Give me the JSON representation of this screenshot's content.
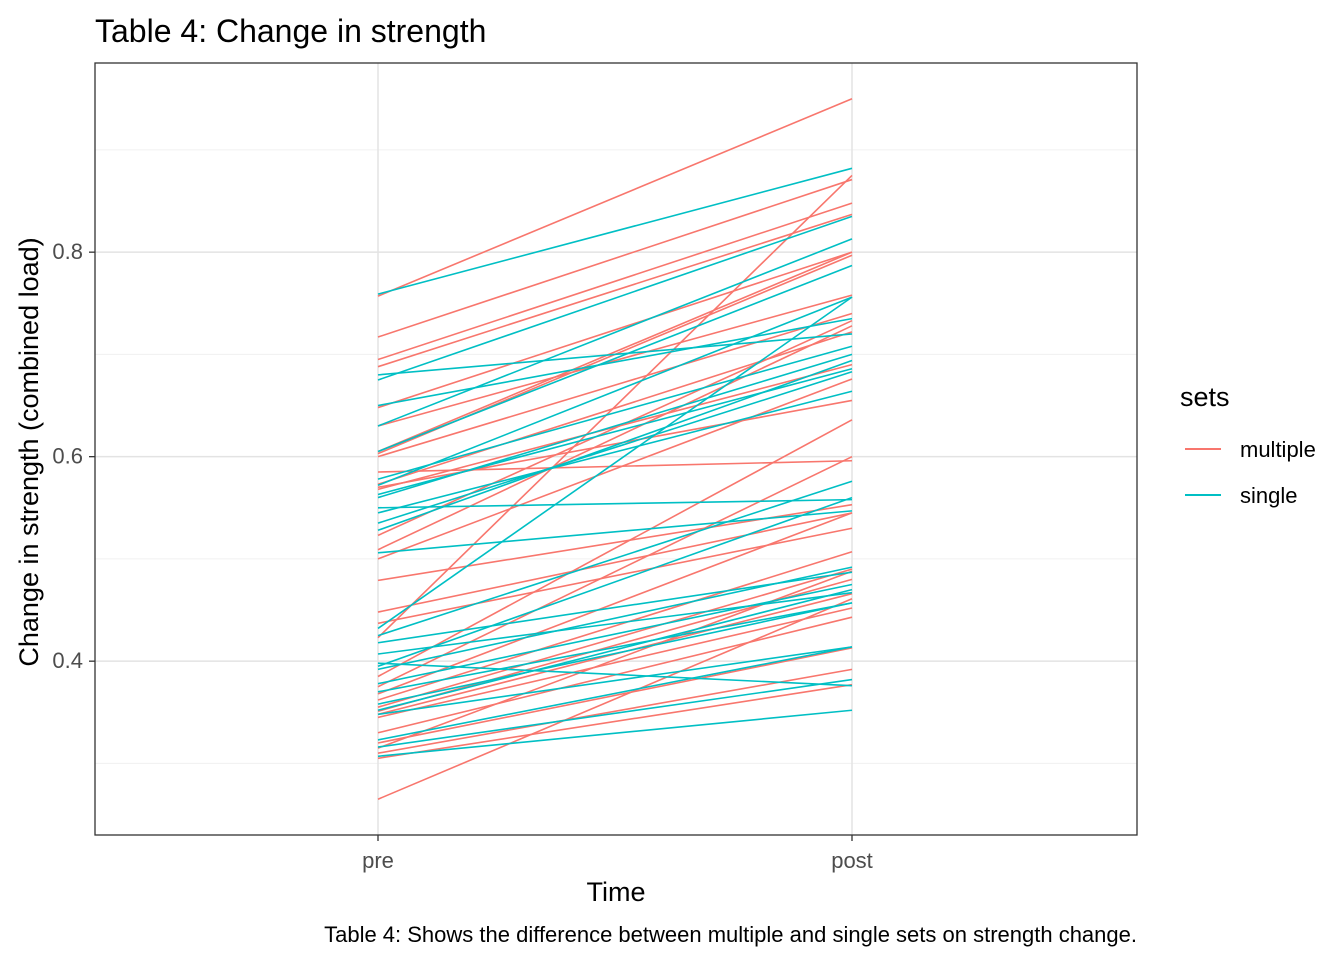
{
  "chart_data": {
    "type": "line",
    "title": "Table 4: Change in strength",
    "caption": "Table 4: Shows the difference between multiple and single sets on strength change.",
    "xlabel": "Time",
    "ylabel": "Change in strength (combined load)",
    "categories": [
      "pre",
      "post"
    ],
    "y_ticks": [
      0.4,
      0.6,
      0.8
    ],
    "y_tick_labels": [
      "0.4",
      "0.6",
      "0.8"
    ],
    "ylim": [
      0.23,
      0.985
    ],
    "grid": true,
    "legend": {
      "title": "sets",
      "position": "right",
      "entries": [
        {
          "label": "multiple",
          "color": "#F8766D"
        },
        {
          "label": "single",
          "color": "#00BFC4"
        }
      ]
    },
    "colors": {
      "multiple": "#F8766D",
      "single": "#00BFC4"
    },
    "series": [
      {
        "group": "multiple",
        "values": [
          0.757,
          0.95
        ]
      },
      {
        "group": "multiple",
        "values": [
          0.717,
          0.871
        ]
      },
      {
        "group": "multiple",
        "values": [
          0.695,
          0.848
        ]
      },
      {
        "group": "multiple",
        "values": [
          0.688,
          0.837
        ]
      },
      {
        "group": "multiple",
        "values": [
          0.648,
          0.8
        ]
      },
      {
        "group": "multiple",
        "values": [
          0.63,
          0.758
        ]
      },
      {
        "group": "multiple",
        "values": [
          0.605,
          0.8
        ]
      },
      {
        "group": "multiple",
        "values": [
          0.603,
          0.797
        ]
      },
      {
        "group": "multiple",
        "values": [
          0.6,
          0.74
        ]
      },
      {
        "group": "multiple",
        "values": [
          0.585,
          0.596
        ]
      },
      {
        "group": "multiple",
        "values": [
          0.573,
          0.722
        ]
      },
      {
        "group": "multiple",
        "values": [
          0.568,
          0.69
        ]
      },
      {
        "group": "multiple",
        "values": [
          0.57,
          0.655
        ]
      },
      {
        "group": "multiple",
        "values": [
          0.523,
          0.733
        ]
      },
      {
        "group": "multiple",
        "values": [
          0.509,
          0.728
        ]
      },
      {
        "group": "multiple",
        "values": [
          0.5,
          0.676
        ]
      },
      {
        "group": "multiple",
        "values": [
          0.479,
          0.553
        ]
      },
      {
        "group": "multiple",
        "values": [
          0.448,
          0.545
        ]
      },
      {
        "group": "multiple",
        "values": [
          0.437,
          0.53
        ]
      },
      {
        "group": "multiple",
        "values": [
          0.423,
          0.875
        ]
      },
      {
        "group": "multiple",
        "values": [
          0.385,
          0.636
        ]
      },
      {
        "group": "multiple",
        "values": [
          0.375,
          0.6
        ]
      },
      {
        "group": "multiple",
        "values": [
          0.368,
          0.545
        ]
      },
      {
        "group": "multiple",
        "values": [
          0.362,
          0.507
        ]
      },
      {
        "group": "multiple",
        "values": [
          0.355,
          0.49
        ]
      },
      {
        "group": "multiple",
        "values": [
          0.351,
          0.48
        ]
      },
      {
        "group": "multiple",
        "values": [
          0.348,
          0.466
        ]
      },
      {
        "group": "multiple",
        "values": [
          0.345,
          0.452
        ]
      },
      {
        "group": "multiple",
        "values": [
          0.33,
          0.443
        ]
      },
      {
        "group": "multiple",
        "values": [
          0.32,
          0.413
        ]
      },
      {
        "group": "multiple",
        "values": [
          0.315,
          0.488
        ]
      },
      {
        "group": "multiple",
        "values": [
          0.31,
          0.392
        ]
      },
      {
        "group": "multiple",
        "values": [
          0.305,
          0.377
        ]
      },
      {
        "group": "multiple",
        "values": [
          0.265,
          0.461
        ]
      },
      {
        "group": "single",
        "values": [
          0.759,
          0.882
        ]
      },
      {
        "group": "single",
        "values": [
          0.68,
          0.72
        ]
      },
      {
        "group": "single",
        "values": [
          0.675,
          0.835
        ]
      },
      {
        "group": "single",
        "values": [
          0.65,
          0.735
        ]
      },
      {
        "group": "single",
        "values": [
          0.63,
          0.813
        ]
      },
      {
        "group": "single",
        "values": [
          0.605,
          0.787
        ]
      },
      {
        "group": "single",
        "values": [
          0.578,
          0.708
        ]
      },
      {
        "group": "single",
        "values": [
          0.572,
          0.756
        ]
      },
      {
        "group": "single",
        "values": [
          0.563,
          0.686
        ]
      },
      {
        "group": "single",
        "values": [
          0.56,
          0.7
        ]
      },
      {
        "group": "single",
        "values": [
          0.55,
          0.558
        ]
      },
      {
        "group": "single",
        "values": [
          0.545,
          0.664
        ]
      },
      {
        "group": "single",
        "values": [
          0.535,
          0.683
        ]
      },
      {
        "group": "single",
        "values": [
          0.528,
          0.694
        ]
      },
      {
        "group": "single",
        "values": [
          0.506,
          0.547
        ]
      },
      {
        "group": "single",
        "values": [
          0.432,
          0.756
        ]
      },
      {
        "group": "single",
        "values": [
          0.425,
          0.576
        ]
      },
      {
        "group": "single",
        "values": [
          0.418,
          0.487
        ]
      },
      {
        "group": "single",
        "values": [
          0.407,
          0.467
        ]
      },
      {
        "group": "single",
        "values": [
          0.398,
          0.376
        ]
      },
      {
        "group": "single",
        "values": [
          0.395,
          0.56
        ]
      },
      {
        "group": "single",
        "values": [
          0.392,
          0.492
        ]
      },
      {
        "group": "single",
        "values": [
          0.378,
          0.475
        ]
      },
      {
        "group": "single",
        "values": [
          0.37,
          0.457
        ]
      },
      {
        "group": "single",
        "values": [
          0.358,
          0.457
        ]
      },
      {
        "group": "single",
        "values": [
          0.352,
          0.47
        ]
      },
      {
        "group": "single",
        "values": [
          0.348,
          0.414
        ]
      },
      {
        "group": "single",
        "values": [
          0.323,
          0.414
        ]
      },
      {
        "group": "single",
        "values": [
          0.316,
          0.382
        ]
      },
      {
        "group": "single",
        "values": [
          0.307,
          0.352
        ]
      }
    ]
  }
}
